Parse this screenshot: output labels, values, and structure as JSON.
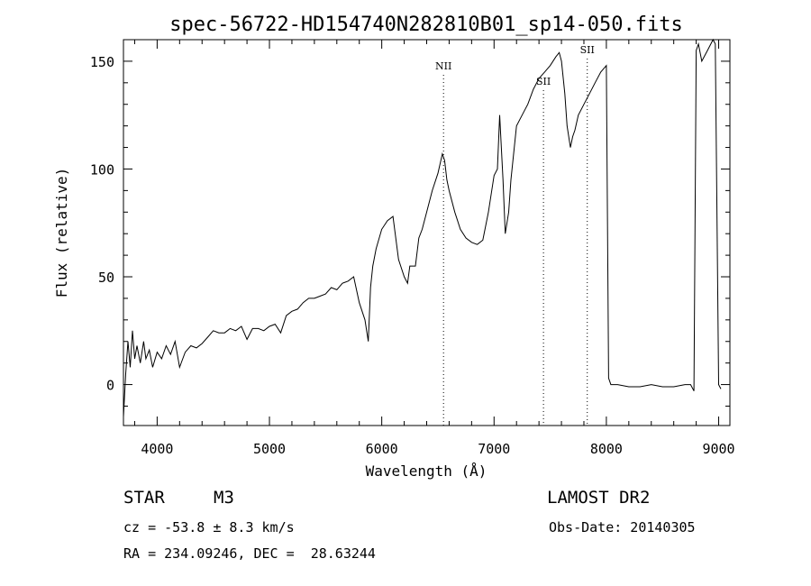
{
  "chart_data": {
    "type": "line",
    "title": "spec-56722-HD154740N282810B01_sp14-050.fits",
    "xlabel": "Wavelength (Å)",
    "ylabel": "Flux (relative)",
    "xlim": [
      3700,
      9100
    ],
    "ylim": [
      -19,
      160
    ],
    "xticks": [
      4000,
      5000,
      6000,
      7000,
      8000,
      9000
    ],
    "yticks": [
      0,
      50,
      100,
      150
    ],
    "grid": false,
    "lines": [
      {
        "label": "NII",
        "x": 6550
      },
      {
        "label": "SII",
        "x": 7440
      },
      {
        "label": "SII",
        "x": 7830
      }
    ],
    "series": [
      {
        "x": [
          3700,
          3720,
          3740,
          3760,
          3780,
          3800,
          3820,
          3850,
          3880,
          3900,
          3930,
          3960,
          4000,
          4040,
          4080,
          4120,
          4160,
          4200,
          4250,
          4300,
          4350,
          4400,
          4450,
          4500,
          4550,
          4600,
          4650,
          4700,
          4750,
          4800,
          4850,
          4900,
          4950,
          5000,
          5050,
          5100,
          5150,
          5200,
          5250,
          5300,
          5350,
          5400,
          5450,
          5500,
          5550,
          5600,
          5650,
          5700,
          5750,
          5800,
          5850,
          5880,
          5900,
          5920,
          5950,
          6000,
          6050,
          6100,
          6150,
          6200,
          6230,
          6250,
          6300,
          6330,
          6360,
          6400,
          6450,
          6500,
          6540,
          6560,
          6580,
          6600,
          6650,
          6700,
          6750,
          6800,
          6850,
          6900,
          6950,
          7000,
          7030,
          7050,
          7080,
          7100,
          7130,
          7150,
          7200,
          7250,
          7300,
          7350,
          7400,
          7450,
          7500,
          7550,
          7580,
          7600,
          7630,
          7650,
          7680,
          7700,
          7720,
          7750,
          7800,
          7850,
          7900,
          7950,
          8000,
          8020,
          8040,
          8100,
          8200,
          8300,
          8400,
          8500,
          8600,
          8700,
          8750,
          8780,
          8800,
          8820,
          8850,
          8900,
          8950,
          8970,
          9000,
          9020
        ],
        "values": [
          -15,
          5,
          20,
          8,
          25,
          12,
          18,
          10,
          20,
          12,
          16,
          8,
          15,
          12,
          18,
          14,
          20,
          8,
          15,
          18,
          17,
          19,
          22,
          25,
          24,
          24,
          26,
          25,
          27,
          21,
          26,
          26,
          25,
          27,
          28,
          24,
          32,
          34,
          35,
          38,
          40,
          40,
          41,
          42,
          45,
          44,
          47,
          48,
          50,
          38,
          30,
          20,
          45,
          55,
          63,
          72,
          76,
          78,
          58,
          50,
          47,
          55,
          55,
          68,
          72,
          80,
          90,
          98,
          107,
          104,
          95,
          90,
          80,
          72,
          68,
          66,
          65,
          67,
          80,
          97,
          100,
          125,
          95,
          70,
          80,
          95,
          120,
          125,
          130,
          137,
          142,
          145,
          148,
          152,
          154,
          150,
          135,
          120,
          110,
          115,
          118,
          125,
          130,
          135,
          140,
          145,
          148,
          3,
          0,
          0,
          -1,
          -1,
          0,
          -1,
          -1,
          0,
          0,
          -3,
          155,
          158,
          150,
          155,
          160,
          158,
          0,
          -2
        ]
      }
    ]
  },
  "info": {
    "object_class": "STAR",
    "subclass": "M3",
    "survey": "LAMOST DR2",
    "cz": "cz = -53.8 ± 8.3 km/s",
    "obs_date": "Obs-Date: 20140305",
    "coords": "RA = 234.09246, DEC =  28.63244"
  }
}
